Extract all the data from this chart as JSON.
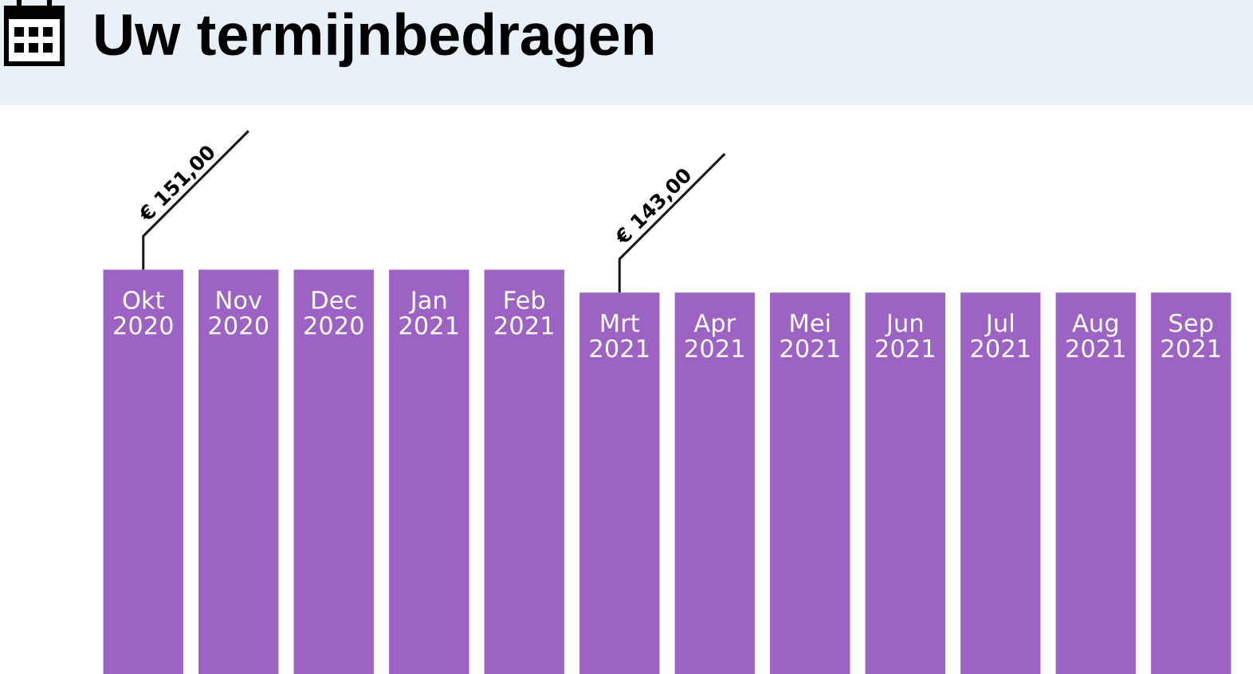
{
  "chart_data": {
    "type": "bar",
    "title": "Uw termijnbedragen",
    "categories": [
      "Okt\n2020",
      "Nov\n2020",
      "Dec\n2020",
      "Jan\n2021",
      "Feb\n2021",
      "Mrt\n2021",
      "Apr\n2021",
      "Mei\n2021",
      "Jun\n2021",
      "Jul\n2021",
      "Aug\n2021",
      "Sep\n2021"
    ],
    "values": [
      151,
      151,
      151,
      151,
      151,
      143,
      143,
      143,
      143,
      143,
      143,
      143
    ],
    "value_labels": [
      "€ 151,00",
      null,
      null,
      null,
      null,
      "€ 143,00",
      null,
      null,
      null,
      null,
      null,
      null
    ],
    "color": "#9c62c4",
    "tick_labels": "x"
  }
}
